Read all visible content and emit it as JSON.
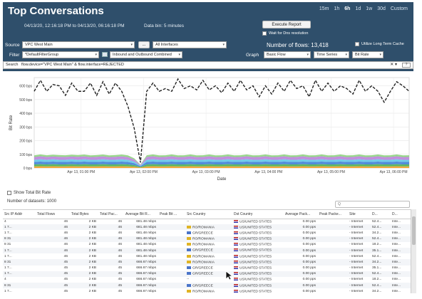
{
  "header": {
    "title": "Top Conversations",
    "time_range": "04/13/20, 12:16:18 PM to 04/13/20, 06:16:18 PM",
    "data_bin": "Data bin: 5 minutes",
    "time_tabs": [
      "15m",
      "1h",
      "6h",
      "1d",
      "1w",
      "30d",
      "Custom"
    ],
    "active_tab": "6h",
    "execute_report": "Execute Report",
    "wait_dns": "Wait for Dns resolution",
    "number_of_flows": "Number of flows: 13,418",
    "utilize_long_term": "Utilize Long Term Cache",
    "source_label": "Source",
    "source_value": "VPC West Main",
    "source_more": "...",
    "interfaces_value": "All Interfaces",
    "filter_label": "Filter",
    "filter_value": "*DefaultFilterGroup",
    "direction_value": "Inbound and Outbound Combined",
    "graph_label": "Graph",
    "graph_value": "Basic Flow",
    "series_value": "Time Series",
    "metric_value": "Bit Rate",
    "search_label": "Search",
    "search_value": "flow.device=\"VPC West Main\" & flow.interface=REJECTED",
    "search_clear": "✕",
    "search_dropdown": "▾",
    "search_help": "?"
  },
  "chart_data": {
    "type": "line",
    "ylabel": "Bit Rate",
    "xlabel": "Date",
    "ytick_labels": [
      "0 bps",
      "100 bps",
      "200 bps",
      "300 bps",
      "400 bps",
      "500 bps",
      "600 bps"
    ],
    "yticks": [
      0,
      100,
      200,
      300,
      400,
      500,
      600
    ],
    "ylim": [
      0,
      660
    ],
    "xtick_labels": [
      "Apr 13, 01:00 PM",
      "Apr 13, 02:00 PM",
      "Apr 13, 03:00 PM",
      "Apr 13, 04:00 PM",
      "Apr 13, 05:00 PM",
      "Apr 13, 06:00 PM"
    ],
    "xticks": [
      0.75,
      1.75,
      2.75,
      3.75,
      4.75,
      5.75
    ],
    "xlim": [
      0,
      6
    ],
    "grid": true,
    "total_series": {
      "style": "dashed",
      "color": "#222222",
      "x": [
        0.0,
        0.1,
        0.2,
        0.3,
        0.4,
        0.5,
        0.6,
        0.7,
        0.8,
        0.9,
        1.0,
        1.1,
        1.2,
        1.3,
        1.4,
        1.5,
        1.6,
        1.7,
        1.8,
        1.9,
        2.0,
        2.1,
        2.2,
        2.3,
        2.4,
        2.5,
        2.6,
        2.7,
        2.8,
        2.9,
        3.0,
        3.1,
        3.2,
        3.3,
        3.4,
        3.5,
        3.6,
        3.7,
        3.8,
        3.9,
        4.0,
        4.1,
        4.2,
        4.3,
        4.4,
        4.5,
        4.6,
        4.7,
        4.8,
        4.9,
        5.0,
        5.1,
        5.2,
        5.3,
        5.4,
        5.5,
        5.6,
        5.7,
        5.8,
        5.9,
        6.0
      ],
      "y": [
        560,
        640,
        560,
        610,
        600,
        530,
        620,
        560,
        560,
        620,
        530,
        630,
        540,
        620,
        560,
        450,
        290,
        40,
        560,
        620,
        560,
        580,
        560,
        650,
        580,
        600,
        570,
        640,
        570,
        600,
        550,
        620,
        560,
        640,
        570,
        600,
        520,
        600,
        540,
        620,
        560,
        640,
        580,
        600,
        520,
        640,
        560,
        620,
        560,
        600,
        580,
        540,
        640,
        560,
        600,
        560,
        480,
        560,
        630,
        600,
        560
      ]
    },
    "stacked_series": [
      {
        "color": "#f0a028",
        "y": [
          12,
          13,
          12,
          13,
          12,
          12,
          13,
          12,
          13,
          12,
          12,
          13,
          12,
          12,
          13,
          12,
          10,
          4,
          12,
          13,
          12,
          12,
          13,
          12,
          12,
          13,
          12,
          12,
          13,
          12,
          12,
          13,
          12,
          12,
          13,
          12,
          12,
          13,
          12,
          12,
          13,
          12,
          12,
          13,
          12,
          12,
          13,
          12,
          12,
          13,
          12,
          12,
          13,
          12,
          12,
          13,
          12,
          12,
          13,
          12,
          12
        ]
      },
      {
        "color": "#4caf50",
        "y": [
          14,
          15,
          14,
          15,
          14,
          14,
          15,
          14,
          15,
          14,
          14,
          15,
          14,
          14,
          15,
          14,
          11,
          4,
          14,
          15,
          14,
          14,
          15,
          14,
          14,
          15,
          14,
          14,
          15,
          14,
          14,
          15,
          14,
          14,
          15,
          14,
          14,
          15,
          14,
          14,
          15,
          14,
          14,
          15,
          14,
          14,
          15,
          14,
          14,
          15,
          14,
          14,
          15,
          14,
          14,
          15,
          14,
          14,
          15,
          14,
          14
        ]
      },
      {
        "color": "#3f7fd6",
        "y": [
          18,
          19,
          18,
          19,
          18,
          18,
          19,
          18,
          19,
          18,
          18,
          19,
          18,
          18,
          19,
          18,
          14,
          5,
          18,
          19,
          18,
          18,
          19,
          18,
          18,
          19,
          18,
          18,
          19,
          18,
          18,
          19,
          18,
          18,
          19,
          18,
          18,
          19,
          18,
          18,
          19,
          18,
          18,
          19,
          18,
          18,
          19,
          18,
          18,
          19,
          18,
          18,
          19,
          18,
          18,
          19,
          18,
          18,
          19,
          18,
          18
        ]
      },
      {
        "color": "#62c7e8",
        "y": [
          16,
          17,
          16,
          17,
          16,
          16,
          17,
          16,
          17,
          16,
          16,
          17,
          16,
          16,
          17,
          16,
          12,
          4,
          16,
          17,
          16,
          16,
          17,
          16,
          16,
          17,
          16,
          16,
          17,
          16,
          16,
          17,
          16,
          16,
          17,
          16,
          16,
          17,
          16,
          16,
          17,
          16,
          16,
          17,
          16,
          16,
          17,
          16,
          16,
          17,
          16,
          16,
          17,
          16,
          16,
          17,
          16,
          16,
          17,
          16,
          16
        ]
      },
      {
        "color": "#b983d9",
        "y": [
          20,
          22,
          21,
          20,
          22,
          21,
          20,
          22,
          21,
          20,
          22,
          21,
          20,
          22,
          21,
          20,
          15,
          5,
          21,
          22,
          20,
          21,
          22,
          20,
          21,
          22,
          20,
          21,
          22,
          20,
          21,
          22,
          20,
          21,
          22,
          20,
          21,
          22,
          20,
          21,
          22,
          20,
          21,
          22,
          20,
          21,
          22,
          20,
          21,
          22,
          20,
          21,
          22,
          20,
          21,
          22,
          20,
          21,
          22,
          20,
          21
        ]
      },
      {
        "color": "#8bd17c",
        "y": [
          12,
          13,
          12,
          13,
          12,
          12,
          13,
          12,
          13,
          12,
          12,
          13,
          12,
          12,
          13,
          12,
          9,
          3,
          12,
          13,
          12,
          12,
          13,
          12,
          12,
          13,
          12,
          12,
          13,
          12,
          12,
          13,
          12,
          12,
          13,
          12,
          12,
          13,
          12,
          12,
          13,
          12,
          12,
          13,
          12,
          12,
          13,
          12,
          12,
          13,
          12,
          12,
          13,
          12,
          12,
          13,
          12,
          12,
          13,
          12,
          12
        ]
      }
    ]
  },
  "show_total": "Show Total Bit Rate",
  "datasets": "Number of datasets: 1000",
  "filter_placeholder": "Q",
  "table": {
    "columns": [
      "Src IP Addr",
      "Total Flows",
      "Total Bytes",
      "Total Pac...",
      "Average Bit R...",
      "Peak Bit ...",
      "Src Country",
      "Dst Country",
      "Average Pack...",
      "Peak Packe...",
      "Site",
      "D...",
      "D..."
    ],
    "rows": [
      [
        "4",
        "46",
        "2 KB",
        "46",
        "681.48 mbps",
        "",
        "--",
        "US/UNITED STATES",
        "0.00 pps",
        "",
        "- Internet",
        "52.4...",
        "Inte..."
      ],
      [
        "1 7...",
        "46",
        "2 KB",
        "46",
        "681.48 mbps",
        "",
        "RO/ROMANIA",
        "US/UNITED STATES",
        "0.00 pps",
        "",
        "- Internet",
        "52.4...",
        "Inte..."
      ],
      [
        "1 7...",
        "46",
        "2 KB",
        "46",
        "681.48 mbps",
        "",
        "GR/GREECE",
        "US/UNITED STATES",
        "0.00 pps",
        "",
        "- Internet",
        "34.2...",
        "Inte..."
      ],
      [
        "8 31",
        "46",
        "2 KB",
        "46",
        "681.48 mbps",
        "",
        "RO/ROMANIA",
        "US/UNITED STATES",
        "0.00 pps",
        "",
        "- Internet",
        "52.4...",
        "Inte..."
      ],
      [
        "8 31",
        "46",
        "2 KB",
        "46",
        "681.48 mbps",
        "",
        "RO/ROMANIA",
        "US/UNITED STATES",
        "0.00 pps",
        "",
        "- Internet",
        "18.2...",
        "Inte..."
      ],
      [
        "1 7...",
        "46",
        "2 KB",
        "46",
        "681.48 mbps",
        "",
        "GR/GREECE",
        "US/UNITED STATES",
        "0.00 pps",
        "",
        "- Internet",
        "35.1...",
        "Inte..."
      ],
      [
        "1 7...",
        "46",
        "2 KB",
        "46",
        "681.48 mbps",
        "",
        "RO/ROMANIA",
        "US/UNITED STATES",
        "0.00 pps",
        "",
        "- Internet",
        "52.4...",
        "Inte..."
      ],
      [
        "8 31",
        "45",
        "2 KB",
        "45",
        "666.67 mbps",
        "",
        "RO/ROMANIA",
        "US/UNITED STATES",
        "0.00 pps",
        "",
        "- Internet",
        "34.2...",
        "Inte..."
      ],
      [
        "1 7...",
        "45",
        "2 KB",
        "45",
        "666.67 mbps",
        "",
        "GR/GREECE",
        "US/UNITED STATES",
        "0.00 pps",
        "",
        "- Internet",
        "35.1...",
        "Inte..."
      ],
      [
        "1 7...",
        "45",
        "2 KB",
        "45",
        "666.67 mbps",
        "",
        "GR/GREECE",
        "US/UNITED STATES",
        "0.00 pps",
        "",
        "- Internet",
        "52.4...",
        "Inte..."
      ],
      [
        "4",
        "45",
        "2 KB",
        "45",
        "666.67 mbps",
        "",
        "--",
        "US/UNITED STATES",
        "0.00 pps",
        "",
        "- Internet",
        "18.2...",
        "Inte..."
      ],
      [
        "8 31",
        "45",
        "2 KB",
        "45",
        "666.67 mbps",
        "",
        "GR/GREECE",
        "US/UNITED STATES",
        "0.00 pps",
        "",
        "- Internet",
        "52.4...",
        "Inte..."
      ],
      [
        "1 7...",
        "45",
        "2 KB",
        "45",
        "666.67 mbps",
        "",
        "RO/ROMANIA",
        "US/UNITED STATES",
        "0.00 pps",
        "",
        "- Internet",
        "34.2...",
        "Inte..."
      ]
    ]
  },
  "colors": {
    "header_bg": "#2f4f6b",
    "greece": "#4a74c9",
    "romania": "#e0b424"
  }
}
